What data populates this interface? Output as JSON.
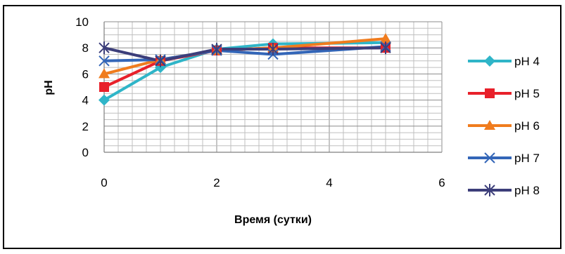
{
  "chart_data": {
    "type": "line",
    "title": "",
    "xlabel": "Время (сутки)",
    "ylabel": "pH",
    "x": [
      0,
      1,
      2,
      3,
      5
    ],
    "xlim": [
      0,
      6
    ],
    "ylim": [
      0,
      10
    ],
    "x_ticks": [
      "0",
      "2",
      "4",
      "6"
    ],
    "y_ticks": [
      "0",
      "2",
      "4",
      "6",
      "8",
      "10"
    ],
    "grid": true,
    "legend_position": "right",
    "series": [
      {
        "name": "pH 4",
        "values": [
          4.0,
          6.5,
          7.9,
          8.3,
          8.4
        ],
        "color": "#2fb5c8",
        "marker": "diamond"
      },
      {
        "name": "pH 5",
        "values": [
          5.0,
          7.0,
          7.8,
          8.0,
          8.0
        ],
        "color": "#e8202a",
        "marker": "square"
      },
      {
        "name": "pH 6",
        "values": [
          6.0,
          7.1,
          7.8,
          8.0,
          8.7
        ],
        "color": "#f07c1e",
        "marker": "triangle"
      },
      {
        "name": "pH 7",
        "values": [
          7.0,
          7.1,
          7.8,
          7.5,
          8.1
        ],
        "color": "#3366b8",
        "marker": "x"
      },
      {
        "name": "pH 8",
        "values": [
          8.0,
          7.0,
          7.9,
          7.9,
          8.0
        ],
        "color": "#3c3e7a",
        "marker": "star"
      }
    ]
  }
}
